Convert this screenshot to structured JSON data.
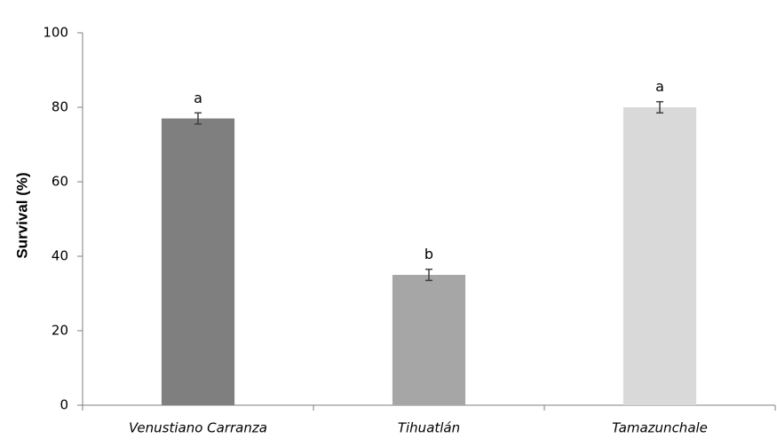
{
  "chart_data": {
    "type": "bar",
    "y_label": "Survival (%)",
    "categories": [
      "Venustiano Carranza",
      "Tihuatlán",
      "Tamazunchale"
    ],
    "values": [
      77,
      35,
      80
    ],
    "errors": [
      1.5,
      1.5,
      1.5
    ],
    "colors": [
      "#7f7f7f",
      "#a6a6a6",
      "#d9d9d9"
    ],
    "letters": [
      "a",
      "b",
      "a"
    ],
    "ylim": [
      0,
      100
    ],
    "yticks": [
      0,
      20,
      40,
      60,
      80,
      100
    ],
    "grid": false
  }
}
